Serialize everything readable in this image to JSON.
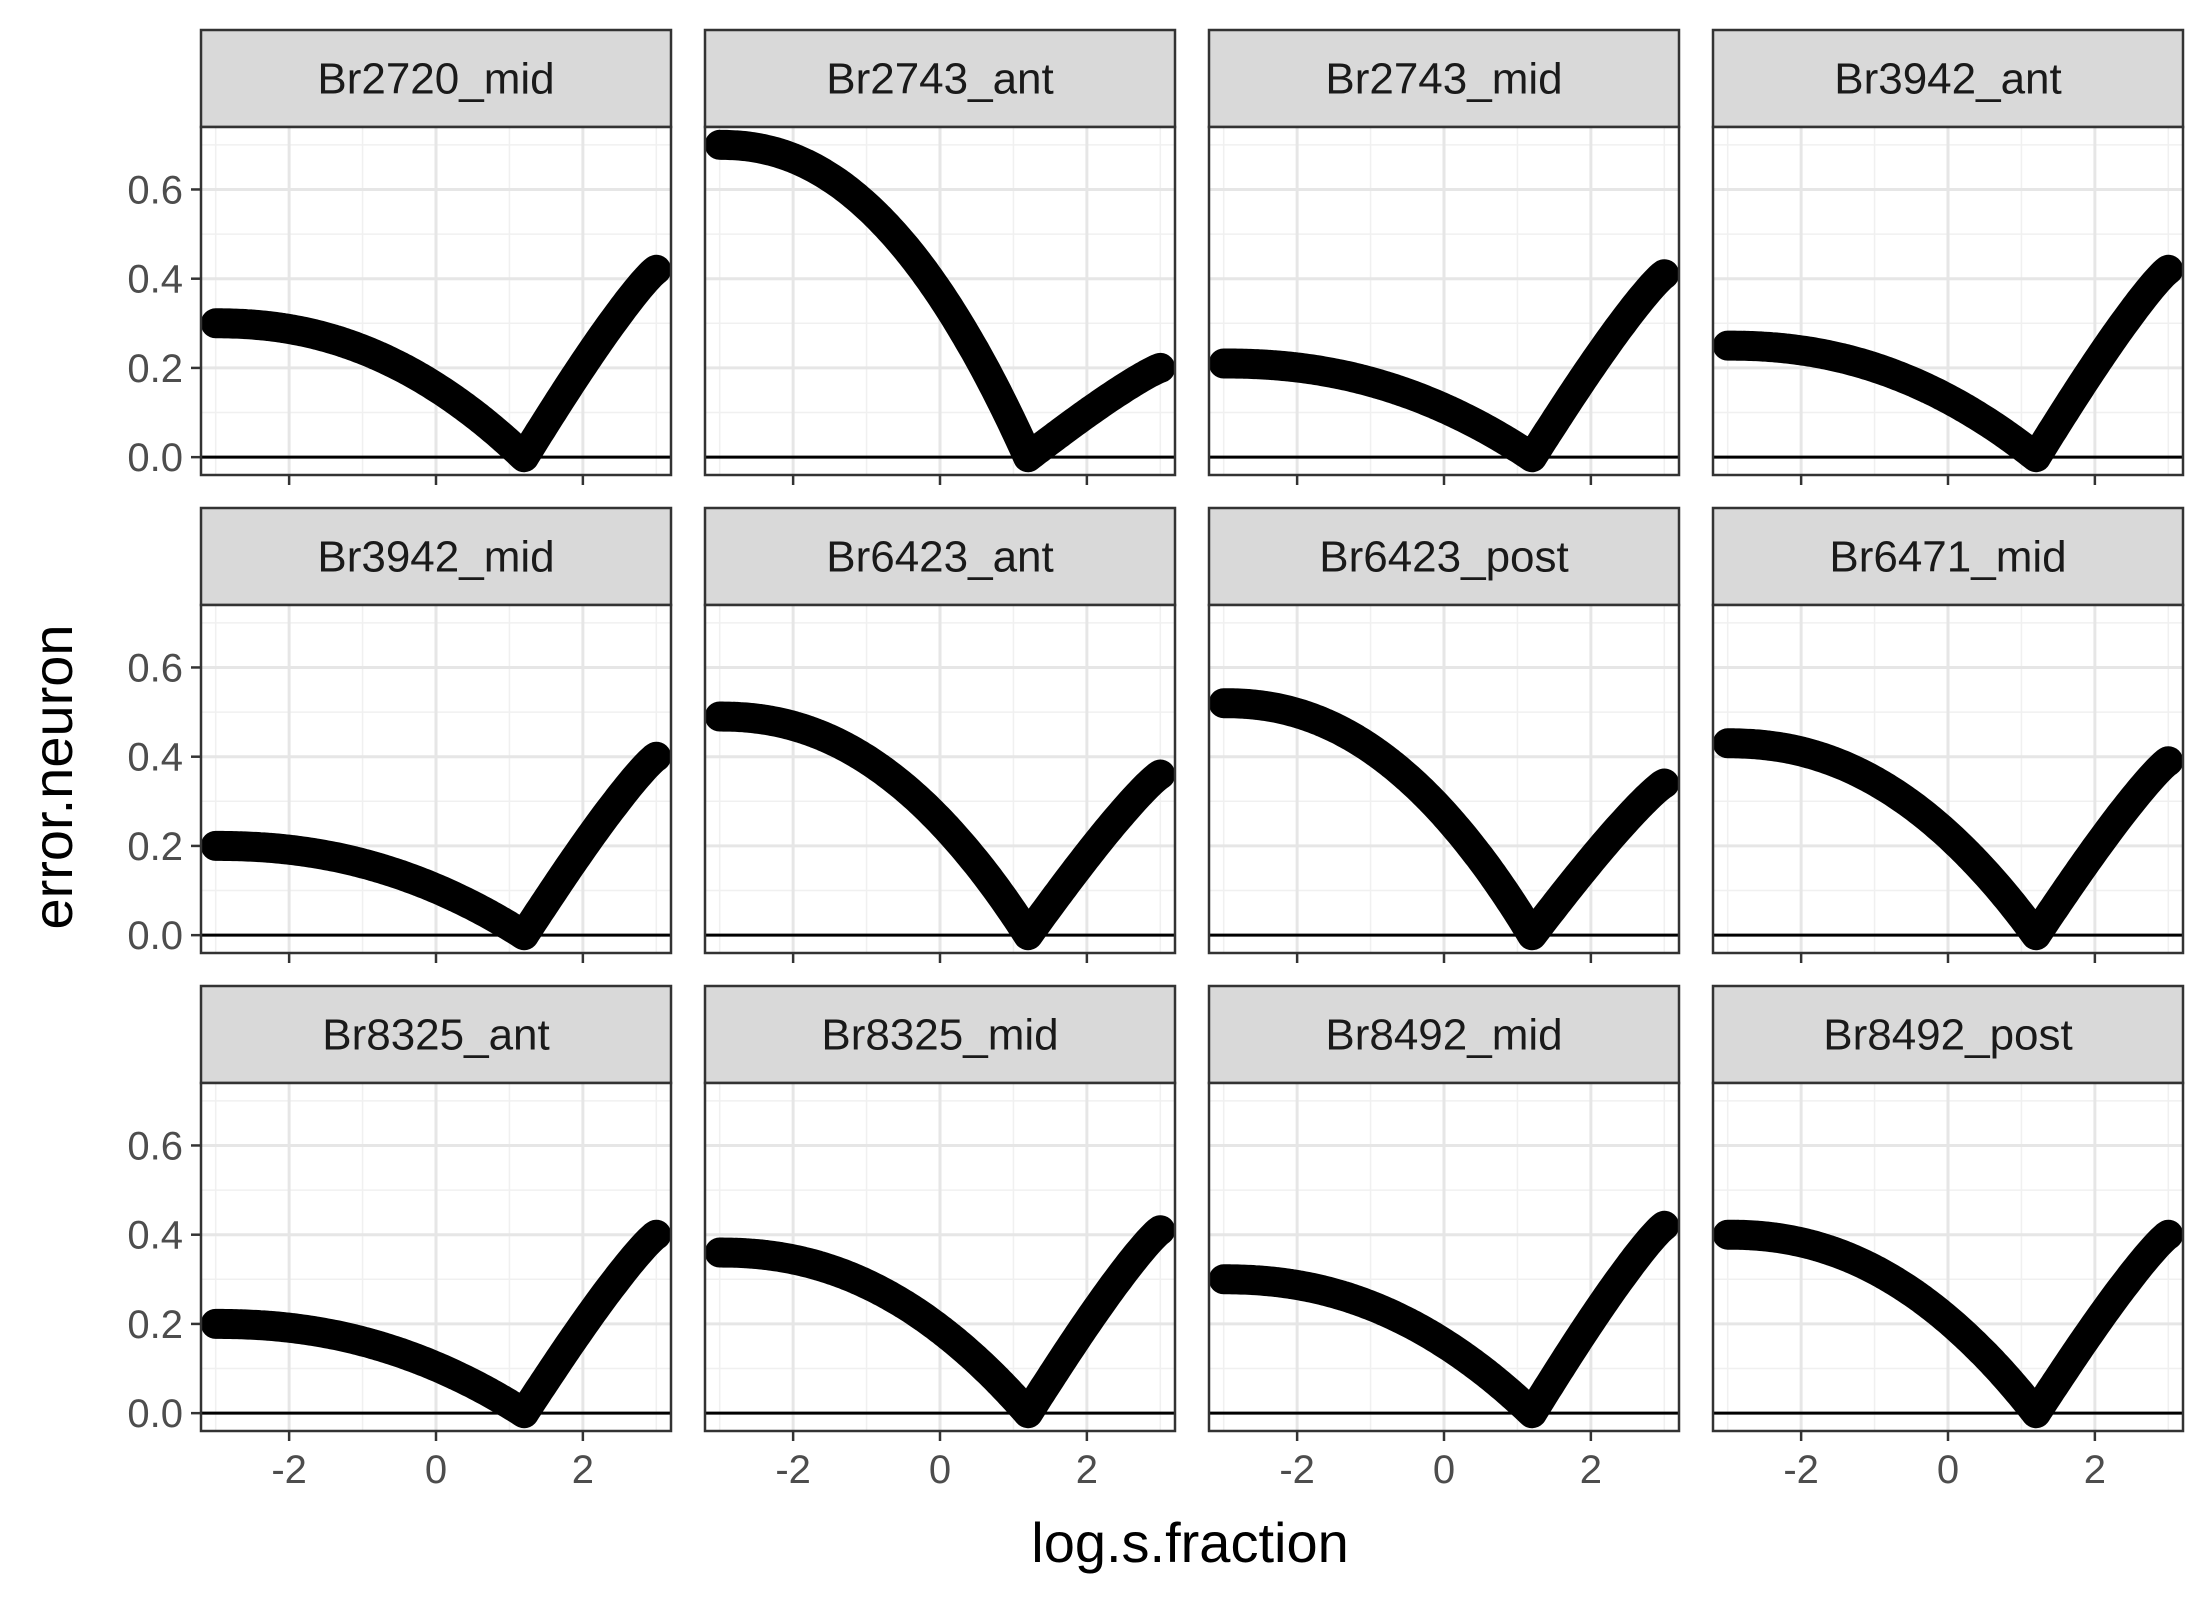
{
  "chart_data": {
    "type": "line",
    "facet_layout": "3 rows x 4 columns",
    "xlabel": "log.s.fraction",
    "ylabel": "error.neuron",
    "xlim": [
      -3.2,
      3.2
    ],
    "ylim": [
      -0.04,
      0.74
    ],
    "x_ticks": [
      -2,
      0,
      2
    ],
    "x_tick_labels": [
      "-2",
      "0",
      "2"
    ],
    "y_ticks": [
      0.0,
      0.2,
      0.4,
      0.6
    ],
    "y_tick_labels": [
      "0.0",
      "0.2",
      "0.4",
      "0.6"
    ],
    "reference_line_y": 0,
    "grid": true,
    "point_color": "#000000",
    "strip_fill": "#d9d9d9",
    "vertex_x": 1.2,
    "x_range": [
      -3,
      3
    ],
    "panels": [
      {
        "title": "Br2720_mid",
        "y_at_min_x": 0.3,
        "y_at_max_x": 0.42
      },
      {
        "title": "Br2743_ant",
        "y_at_min_x": 0.7,
        "y_at_max_x": 0.2
      },
      {
        "title": "Br2743_mid",
        "y_at_min_x": 0.21,
        "y_at_max_x": 0.41
      },
      {
        "title": "Br3942_ant",
        "y_at_min_x": 0.25,
        "y_at_max_x": 0.42
      },
      {
        "title": "Br3942_mid",
        "y_at_min_x": 0.2,
        "y_at_max_x": 0.4
      },
      {
        "title": "Br6423_ant",
        "y_at_min_x": 0.49,
        "y_at_max_x": 0.36
      },
      {
        "title": "Br6423_post",
        "y_at_min_x": 0.52,
        "y_at_max_x": 0.34
      },
      {
        "title": "Br6471_mid",
        "y_at_min_x": 0.43,
        "y_at_max_x": 0.39
      },
      {
        "title": "Br8325_ant",
        "y_at_min_x": 0.2,
        "y_at_max_x": 0.4
      },
      {
        "title": "Br8325_mid",
        "y_at_min_x": 0.36,
        "y_at_max_x": 0.41
      },
      {
        "title": "Br8492_mid",
        "y_at_min_x": 0.3,
        "y_at_max_x": 0.42
      },
      {
        "title": "Br8492_post",
        "y_at_min_x": 0.4,
        "y_at_max_x": 0.4
      }
    ]
  }
}
